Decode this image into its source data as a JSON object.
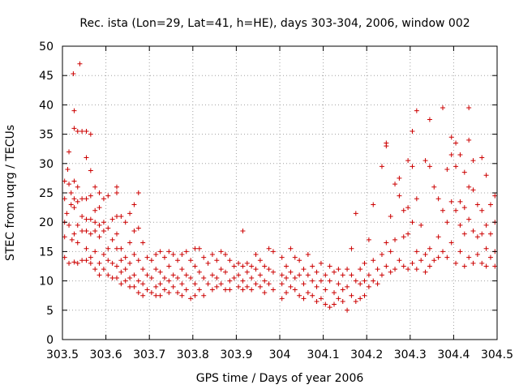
{
  "chart_data": {
    "type": "scatter",
    "title": "Rec. ista (Lon=29, Lat=41, h=HE), days 303-304, 2006, window 002",
    "xlabel": "GPS time / Days of year 2006",
    "ylabel": "STEC from uqrg / TECUs",
    "xlim": [
      303.5,
      304.5
    ],
    "ylim": [
      0,
      50
    ],
    "x_ticks": [
      "303.5",
      "303.6",
      "303.7",
      "303.8",
      "303.9",
      "304",
      "304.1",
      "304.2",
      "304.3",
      "304.4",
      "304.5"
    ],
    "y_ticks": [
      "0",
      "5",
      "10",
      "15",
      "20",
      "25",
      "30",
      "35",
      "40",
      "45",
      "50"
    ],
    "grid": true,
    "marker": "plus",
    "color": "#cc0000",
    "points": [
      [
        303.505,
        27.0
      ],
      [
        303.505,
        24.0
      ],
      [
        303.505,
        20.0
      ],
      [
        303.505,
        17.5
      ],
      [
        303.505,
        14.0
      ],
      [
        303.51,
        21.5
      ],
      [
        303.512,
        29.0
      ],
      [
        303.515,
        32.0
      ],
      [
        303.515,
        26.5
      ],
      [
        303.515,
        19.5
      ],
      [
        303.515,
        13.0
      ],
      [
        303.52,
        25.0
      ],
      [
        303.52,
        23.0
      ],
      [
        303.522,
        17.0
      ],
      [
        303.525,
        45.3
      ],
      [
        303.527,
        39.0
      ],
      [
        303.527,
        36.0
      ],
      [
        303.527,
        27.0
      ],
      [
        303.527,
        24.0
      ],
      [
        303.527,
        22.5
      ],
      [
        303.527,
        18.0
      ],
      [
        303.527,
        13.2
      ],
      [
        303.535,
        35.5
      ],
      [
        303.535,
        26.0
      ],
      [
        303.535,
        23.5
      ],
      [
        303.535,
        19.5
      ],
      [
        303.535,
        16.5
      ],
      [
        303.535,
        13.0
      ],
      [
        303.54,
        47.0
      ],
      [
        303.545,
        35.5
      ],
      [
        303.545,
        24.0
      ],
      [
        303.545,
        21.0
      ],
      [
        303.545,
        18.5
      ],
      [
        303.545,
        13.5
      ],
      [
        303.555,
        35.5
      ],
      [
        303.555,
        31.0
      ],
      [
        303.555,
        24.0
      ],
      [
        303.555,
        20.5
      ],
      [
        303.555,
        18.5
      ],
      [
        303.555,
        15.5
      ],
      [
        303.555,
        13.5
      ],
      [
        303.565,
        35.0
      ],
      [
        303.565,
        28.8
      ],
      [
        303.565,
        24.5
      ],
      [
        303.565,
        20.5
      ],
      [
        303.565,
        18.0
      ],
      [
        303.565,
        14.0
      ],
      [
        303.565,
        13.0
      ],
      [
        303.575,
        26.0
      ],
      [
        303.575,
        22.0
      ],
      [
        303.575,
        20.0
      ],
      [
        303.575,
        18.5
      ],
      [
        303.575,
        15.0
      ],
      [
        303.575,
        12.0
      ],
      [
        303.585,
        25.0
      ],
      [
        303.585,
        22.5
      ],
      [
        303.585,
        19.5
      ],
      [
        303.585,
        17.5
      ],
      [
        303.585,
        13.0
      ],
      [
        303.585,
        11.0
      ],
      [
        303.595,
        24.0
      ],
      [
        303.595,
        20.0
      ],
      [
        303.595,
        18.5
      ],
      [
        303.595,
        14.5
      ],
      [
        303.595,
        12.0
      ],
      [
        303.605,
        24.5
      ],
      [
        303.605,
        19.0
      ],
      [
        303.605,
        15.5
      ],
      [
        303.605,
        13.5
      ],
      [
        303.605,
        11.0
      ],
      [
        303.615,
        20.5
      ],
      [
        303.615,
        17.0
      ],
      [
        303.615,
        13.0
      ],
      [
        303.615,
        10.5
      ],
      [
        303.625,
        26.0
      ],
      [
        303.625,
        25.0
      ],
      [
        303.625,
        21.0
      ],
      [
        303.625,
        18.0
      ],
      [
        303.625,
        15.5
      ],
      [
        303.625,
        12.5
      ],
      [
        303.625,
        10.5
      ],
      [
        303.635,
        21.0
      ],
      [
        303.635,
        15.5
      ],
      [
        303.635,
        13.5
      ],
      [
        303.635,
        11.5
      ],
      [
        303.635,
        9.5
      ],
      [
        303.645,
        20.0
      ],
      [
        303.645,
        14.0
      ],
      [
        303.645,
        12.0
      ],
      [
        303.645,
        10.0
      ],
      [
        303.655,
        21.5
      ],
      [
        303.655,
        16.5
      ],
      [
        303.655,
        13.0
      ],
      [
        303.655,
        10.5
      ],
      [
        303.655,
        9.0
      ],
      [
        303.665,
        23.0
      ],
      [
        303.665,
        18.5
      ],
      [
        303.665,
        14.5
      ],
      [
        303.665,
        11.0
      ],
      [
        303.665,
        9.0
      ],
      [
        303.675,
        25.0
      ],
      [
        303.675,
        19.0
      ],
      [
        303.675,
        13.5
      ],
      [
        303.675,
        10.0
      ],
      [
        303.675,
        8.0
      ],
      [
        303.685,
        16.5
      ],
      [
        303.685,
        12.0
      ],
      [
        303.685,
        9.5
      ],
      [
        303.685,
        7.5
      ],
      [
        303.695,
        14.0
      ],
      [
        303.695,
        11.0
      ],
      [
        303.695,
        8.5
      ],
      [
        303.705,
        13.5
      ],
      [
        303.705,
        10.5
      ],
      [
        303.705,
        8.0
      ],
      [
        303.715,
        14.5
      ],
      [
        303.715,
        12.0
      ],
      [
        303.715,
        9.0
      ],
      [
        303.715,
        7.5
      ],
      [
        303.725,
        15.0
      ],
      [
        303.725,
        11.5
      ],
      [
        303.725,
        9.5
      ],
      [
        303.725,
        7.5
      ],
      [
        303.735,
        14.0
      ],
      [
        303.735,
        10.5
      ],
      [
        303.735,
        8.5
      ],
      [
        303.745,
        15.0
      ],
      [
        303.745,
        12.5
      ],
      [
        303.745,
        10.0
      ],
      [
        303.745,
        8.0
      ],
      [
        303.755,
        14.5
      ],
      [
        303.755,
        11.0
      ],
      [
        303.755,
        9.0
      ],
      [
        303.765,
        13.5
      ],
      [
        303.765,
        10.5
      ],
      [
        303.765,
        8.0
      ],
      [
        303.775,
        14.5
      ],
      [
        303.775,
        12.0
      ],
      [
        303.775,
        9.5
      ],
      [
        303.775,
        7.5
      ],
      [
        303.785,
        15.0
      ],
      [
        303.785,
        11.0
      ],
      [
        303.785,
        8.5
      ],
      [
        303.795,
        13.5
      ],
      [
        303.795,
        10.5
      ],
      [
        303.795,
        7.0
      ],
      [
        303.805,
        15.5
      ],
      [
        303.805,
        12.5
      ],
      [
        303.805,
        9.5
      ],
      [
        303.805,
        7.5
      ],
      [
        303.815,
        15.5
      ],
      [
        303.815,
        11.5
      ],
      [
        303.815,
        8.5
      ],
      [
        303.825,
        14.0
      ],
      [
        303.825,
        10.5
      ],
      [
        303.825,
        7.5
      ],
      [
        303.835,
        13.0
      ],
      [
        303.835,
        9.5
      ],
      [
        303.845,
        14.5
      ],
      [
        303.845,
        11.0
      ],
      [
        303.845,
        8.5
      ],
      [
        303.855,
        13.5
      ],
      [
        303.855,
        10.5
      ],
      [
        303.855,
        9.0
      ],
      [
        303.865,
        15.0
      ],
      [
        303.865,
        12.0
      ],
      [
        303.865,
        9.5
      ],
      [
        303.875,
        14.5
      ],
      [
        303.875,
        11.5
      ],
      [
        303.875,
        8.5
      ],
      [
        303.885,
        13.5
      ],
      [
        303.885,
        10.0
      ],
      [
        303.885,
        8.5
      ],
      [
        303.895,
        12.5
      ],
      [
        303.895,
        10.5
      ],
      [
        303.905,
        13.0
      ],
      [
        303.905,
        11.0
      ],
      [
        303.905,
        9.0
      ],
      [
        303.915,
        18.5
      ],
      [
        303.915,
        12.5
      ],
      [
        303.915,
        10.0
      ],
      [
        303.915,
        8.5
      ],
      [
        303.925,
        13.0
      ],
      [
        303.925,
        11.5
      ],
      [
        303.925,
        9.0
      ],
      [
        303.935,
        12.5
      ],
      [
        303.935,
        10.5
      ],
      [
        303.935,
        8.5
      ],
      [
        303.945,
        14.5
      ],
      [
        303.945,
        12.0
      ],
      [
        303.945,
        9.5
      ],
      [
        303.955,
        13.5
      ],
      [
        303.955,
        11.0
      ],
      [
        303.955,
        9.0
      ],
      [
        303.965,
        12.5
      ],
      [
        303.965,
        10.0
      ],
      [
        303.965,
        8.0
      ],
      [
        303.975,
        15.5
      ],
      [
        303.975,
        12.0
      ],
      [
        303.975,
        9.5
      ],
      [
        303.985,
        15.0
      ],
      [
        303.985,
        11.5
      ],
      [
        303.985,
        8.5
      ],
      [
        304.005,
        14.0
      ],
      [
        304.005,
        11.0
      ],
      [
        304.005,
        9.5
      ],
      [
        304.005,
        7.0
      ],
      [
        304.015,
        12.5
      ],
      [
        304.015,
        10.5
      ],
      [
        304.015,
        8.0
      ],
      [
        304.025,
        15.5
      ],
      [
        304.025,
        11.5
      ],
      [
        304.025,
        9.0
      ],
      [
        304.035,
        14.0
      ],
      [
        304.035,
        10.5
      ],
      [
        304.035,
        8.5
      ],
      [
        304.045,
        13.5
      ],
      [
        304.045,
        11.0
      ],
      [
        304.045,
        7.5
      ],
      [
        304.055,
        12.0
      ],
      [
        304.055,
        9.5
      ],
      [
        304.055,
        7.0
      ],
      [
        304.065,
        14.5
      ],
      [
        304.065,
        11.0
      ],
      [
        304.065,
        8.0
      ],
      [
        304.075,
        12.5
      ],
      [
        304.075,
        10.0
      ],
      [
        304.075,
        7.5
      ],
      [
        304.085,
        11.5
      ],
      [
        304.085,
        9.0
      ],
      [
        304.085,
        6.5
      ],
      [
        304.095,
        13.0
      ],
      [
        304.095,
        10.0
      ],
      [
        304.095,
        7.0
      ],
      [
        304.105,
        11.0
      ],
      [
        304.105,
        8.5
      ],
      [
        304.105,
        6.0
      ],
      [
        304.115,
        12.5
      ],
      [
        304.115,
        10.0
      ],
      [
        304.115,
        5.5
      ],
      [
        304.125,
        11.5
      ],
      [
        304.125,
        8.0
      ],
      [
        304.125,
        6.0
      ],
      [
        304.135,
        12.0
      ],
      [
        304.135,
        9.5
      ],
      [
        304.135,
        7.0
      ],
      [
        304.145,
        11.0
      ],
      [
        304.145,
        8.5
      ],
      [
        304.145,
        6.5
      ],
      [
        304.155,
        12.0
      ],
      [
        304.155,
        9.0
      ],
      [
        304.155,
        5.0
      ],
      [
        304.165,
        15.5
      ],
      [
        304.165,
        11.0
      ],
      [
        304.165,
        7.5
      ],
      [
        304.175,
        21.5
      ],
      [
        304.175,
        10.0
      ],
      [
        304.175,
        6.5
      ],
      [
        304.185,
        12.0
      ],
      [
        304.185,
        9.5
      ],
      [
        304.185,
        7.0
      ],
      [
        304.195,
        13.0
      ],
      [
        304.195,
        10.0
      ],
      [
        304.195,
        7.5
      ],
      [
        304.205,
        17.0
      ],
      [
        304.205,
        11.0
      ],
      [
        304.205,
        9.0
      ],
      [
        304.215,
        23.0
      ],
      [
        304.215,
        13.5
      ],
      [
        304.215,
        10.0
      ],
      [
        304.225,
        12.0
      ],
      [
        304.225,
        9.5
      ],
      [
        304.235,
        29.5
      ],
      [
        304.235,
        14.5
      ],
      [
        304.235,
        11.0
      ],
      [
        304.245,
        33.5
      ],
      [
        304.245,
        33.0
      ],
      [
        304.245,
        16.5
      ],
      [
        304.245,
        12.5
      ],
      [
        304.255,
        21.0
      ],
      [
        304.255,
        15.0
      ],
      [
        304.255,
        11.5
      ],
      [
        304.265,
        26.5
      ],
      [
        304.265,
        17.0
      ],
      [
        304.265,
        12.0
      ],
      [
        304.275,
        27.5
      ],
      [
        304.275,
        24.5
      ],
      [
        304.275,
        13.5
      ],
      [
        304.285,
        22.0
      ],
      [
        304.285,
        17.5
      ],
      [
        304.285,
        12.5
      ],
      [
        304.295,
        30.5
      ],
      [
        304.295,
        22.5
      ],
      [
        304.295,
        18.0
      ],
      [
        304.295,
        12.0
      ],
      [
        304.305,
        35.5
      ],
      [
        304.305,
        29.5
      ],
      [
        304.305,
        20.0
      ],
      [
        304.305,
        13.0
      ],
      [
        304.315,
        39.0
      ],
      [
        304.315,
        24.0
      ],
      [
        304.315,
        15.0
      ],
      [
        304.315,
        12.0
      ],
      [
        304.325,
        19.5
      ],
      [
        304.325,
        13.5
      ],
      [
        304.335,
        30.5
      ],
      [
        304.335,
        14.5
      ],
      [
        304.335,
        11.5
      ],
      [
        304.345,
        37.5
      ],
      [
        304.345,
        29.5
      ],
      [
        304.345,
        15.5
      ],
      [
        304.345,
        12.5
      ],
      [
        304.355,
        26.0
      ],
      [
        304.355,
        13.5
      ],
      [
        304.365,
        24.0
      ],
      [
        304.365,
        17.5
      ],
      [
        304.365,
        14.0
      ],
      [
        304.375,
        39.5
      ],
      [
        304.375,
        22.0
      ],
      [
        304.375,
        15.0
      ],
      [
        304.385,
        29.0
      ],
      [
        304.385,
        20.0
      ],
      [
        304.385,
        14.0
      ],
      [
        304.395,
        34.5
      ],
      [
        304.395,
        31.5
      ],
      [
        304.395,
        23.5
      ],
      [
        304.395,
        16.5
      ],
      [
        304.405,
        33.5
      ],
      [
        304.405,
        29.5
      ],
      [
        304.405,
        22.0
      ],
      [
        304.405,
        13.0
      ],
      [
        304.415,
        31.5
      ],
      [
        304.415,
        23.5
      ],
      [
        304.415,
        19.5
      ],
      [
        304.415,
        15.0
      ],
      [
        304.425,
        28.5
      ],
      [
        304.425,
        22.5
      ],
      [
        304.425,
        18.0
      ],
      [
        304.425,
        12.5
      ],
      [
        304.435,
        39.5
      ],
      [
        304.435,
        34.0
      ],
      [
        304.435,
        26.0
      ],
      [
        304.435,
        20.5
      ],
      [
        304.435,
        14.0
      ],
      [
        304.445,
        30.5
      ],
      [
        304.445,
        25.5
      ],
      [
        304.445,
        18.5
      ],
      [
        304.445,
        13.0
      ],
      [
        304.455,
        23.0
      ],
      [
        304.455,
        17.5
      ],
      [
        304.455,
        14.5
      ],
      [
        304.465,
        31.0
      ],
      [
        304.465,
        22.0
      ],
      [
        304.465,
        18.0
      ],
      [
        304.465,
        13.0
      ],
      [
        304.475,
        28.0
      ],
      [
        304.475,
        19.5
      ],
      [
        304.475,
        15.5
      ],
      [
        304.475,
        12.5
      ],
      [
        304.485,
        23.0
      ],
      [
        304.485,
        18.0
      ],
      [
        304.485,
        14.0
      ],
      [
        304.495,
        24.5
      ],
      [
        304.495,
        20.0
      ],
      [
        304.495,
        15.0
      ],
      [
        304.495,
        12.5
      ]
    ]
  }
}
